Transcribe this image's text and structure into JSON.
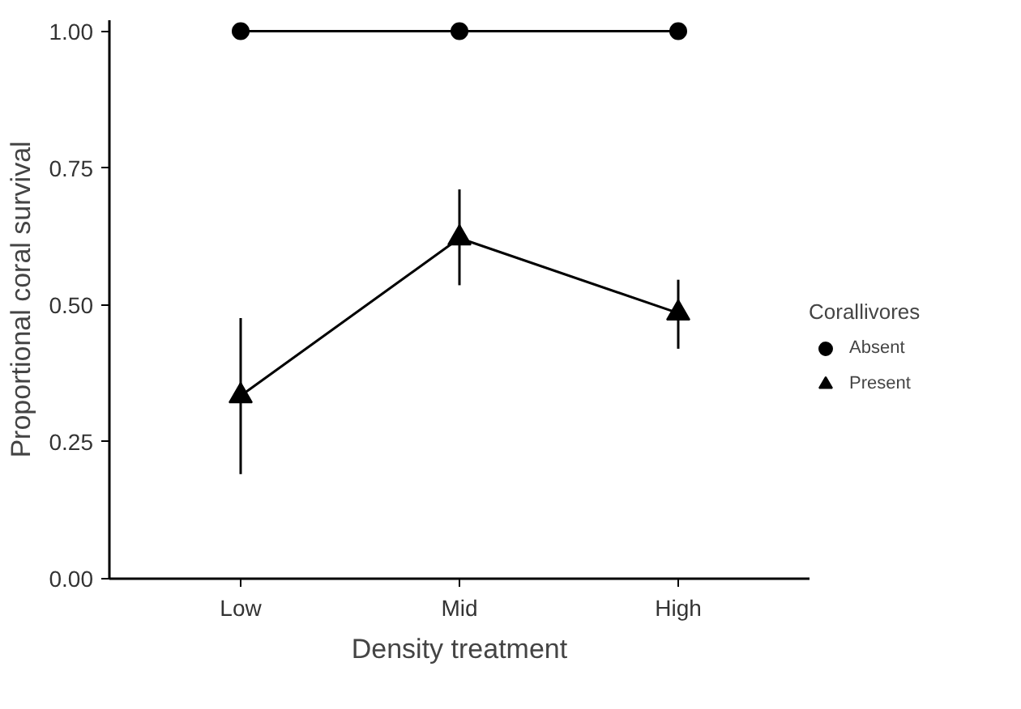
{
  "chart_data": {
    "type": "line",
    "xlabel": "Density treatment",
    "ylabel": "Proportional coral survival",
    "legend_title": "Corallivores",
    "categories": [
      "Low",
      "Mid",
      "High"
    ],
    "series": [
      {
        "name": "Absent",
        "color": "#000000",
        "marker": "circle",
        "values": [
          1.0,
          1.0,
          1.0
        ]
      },
      {
        "name": "Present",
        "color": "#000000",
        "marker": "triangle",
        "values": [
          0.334,
          0.622,
          0.485
        ],
        "errors": [
          [
            0.191,
            0.476
          ],
          [
            0.536,
            0.711
          ],
          [
            0.42,
            0.546
          ]
        ]
      }
    ],
    "ylim": [
      0,
      1.02
    ],
    "yticks": [
      {
        "value": 0,
        "label": "0.00"
      },
      {
        "value": 0.25,
        "label": "0.25"
      },
      {
        "value": 0.5,
        "label": "0.50"
      },
      {
        "value": 0.75,
        "label": "0.75"
      },
      {
        "value": 1,
        "label": "1.00"
      }
    ],
    "grid": false,
    "legend": "right"
  }
}
